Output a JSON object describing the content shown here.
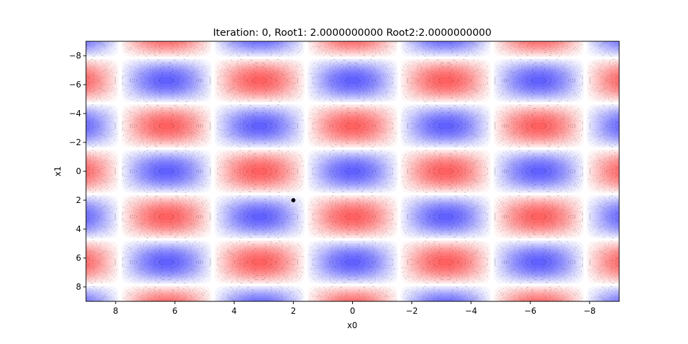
{
  "chart_data": {
    "type": "heatmap",
    "title": "Iteration:  0, Root1: 2.0000000000 Root2:2.0000000000",
    "xlabel": "x0",
    "ylabel": "x1",
    "xlim": [
      9,
      -9
    ],
    "ylim": [
      9,
      -9
    ],
    "xticks": [
      8,
      6,
      4,
      2,
      0,
      -2,
      -4,
      -6,
      -8
    ],
    "yticks": [
      -8,
      -6,
      -4,
      -2,
      0,
      2,
      4,
      6,
      8
    ],
    "xtick_labels": [
      "8",
      "6",
      "4",
      "2",
      "0",
      "−2",
      "−4",
      "−6",
      "−8"
    ],
    "ytick_labels": [
      "−8",
      "−6",
      "−4",
      "−2",
      "0",
      "2",
      "4",
      "6",
      "8"
    ],
    "field": "f(x0, x1) = sin(x0 − π/2) · cos(x1)",
    "colormap": "bwr",
    "color_low": "#0000ff",
    "color_mid": "#ffffff",
    "color_high": "#ff0000",
    "contour_color": "#000000",
    "point": {
      "x0": 2,
      "x1": 2,
      "color": "#000000"
    },
    "grid": false,
    "legend": "none"
  }
}
